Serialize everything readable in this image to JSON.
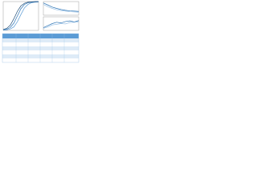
{
  "chart_data": [
    {
      "type": "line",
      "x": [
        0,
        1,
        2,
        3,
        4,
        5,
        6,
        7,
        8,
        9,
        10
      ],
      "xlim": [
        0,
        10
      ],
      "ylim": [
        0,
        1
      ],
      "series": [
        {
          "color": "#2e75b6",
          "values": [
            0.02,
            0.04,
            0.1,
            0.25,
            0.5,
            0.75,
            0.9,
            0.96,
            0.98,
            0.99,
            1
          ]
        },
        {
          "color": "#5b9bd5",
          "values": [
            0.01,
            0.02,
            0.05,
            0.12,
            0.3,
            0.55,
            0.78,
            0.9,
            0.96,
            0.98,
            0.99
          ]
        },
        {
          "color": "#1f4e79",
          "values": [
            0.03,
            0.07,
            0.18,
            0.4,
            0.66,
            0.85,
            0.94,
            0.98,
            0.99,
            1,
            1
          ]
        }
      ]
    },
    {
      "type": "line",
      "x": [
        0,
        1,
        2,
        3,
        4,
        5,
        6,
        7,
        8
      ],
      "xlim": [
        0,
        8
      ],
      "ylim": [
        0,
        1
      ],
      "series": [
        {
          "color": "#2e75b6",
          "values": [
            0.9,
            0.75,
            0.6,
            0.5,
            0.42,
            0.36,
            0.32,
            0.3,
            0.28
          ]
        },
        {
          "color": "#9dc3e6",
          "values": [
            0.8,
            0.62,
            0.5,
            0.4,
            0.34,
            0.3,
            0.26,
            0.24,
            0.22
          ]
        }
      ]
    },
    {
      "type": "line",
      "x": [
        0,
        1,
        2,
        3,
        4,
        5,
        6,
        7,
        8
      ],
      "xlim": [
        0,
        8
      ],
      "ylim": [
        0,
        1
      ],
      "series": [
        {
          "color": "#2e75b6",
          "values": [
            0.2,
            0.35,
            0.5,
            0.6,
            0.55,
            0.65,
            0.7,
            0.62,
            0.72
          ]
        },
        {
          "color": "#9dc3e6",
          "values": [
            0.15,
            0.25,
            0.4,
            0.45,
            0.5,
            0.48,
            0.58,
            0.6,
            0.64
          ]
        }
      ]
    }
  ]
}
